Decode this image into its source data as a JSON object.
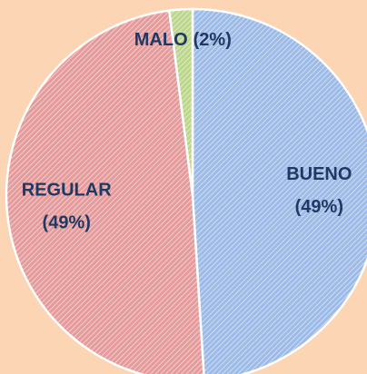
{
  "chart_data": {
    "type": "pie",
    "categories": [
      "BUENO",
      "REGULAR",
      "MALO"
    ],
    "values": [
      49,
      49,
      2
    ],
    "value_labels": [
      "(49%)",
      "(49%)",
      "(2%)"
    ],
    "colors": [
      "#9dbbe6",
      "#e59b9b",
      "#bcd68c"
    ]
  }
}
